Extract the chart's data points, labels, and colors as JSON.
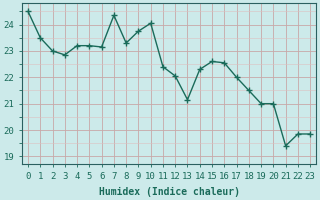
{
  "x": [
    0,
    1,
    2,
    3,
    4,
    5,
    6,
    7,
    8,
    9,
    10,
    11,
    12,
    13,
    14,
    15,
    16,
    17,
    18,
    19,
    20,
    21,
    22,
    23
  ],
  "y": [
    24.5,
    23.5,
    23.0,
    22.85,
    23.2,
    23.2,
    23.15,
    24.35,
    23.3,
    23.75,
    24.05,
    22.4,
    22.05,
    21.15,
    22.3,
    22.6,
    22.55,
    22.0,
    21.5,
    21.0,
    21.0,
    19.4,
    19.85,
    19.85
  ],
  "line_color": "#1a6b5a",
  "marker": "+",
  "marker_size": 5,
  "line_width": 1.0,
  "bg_color": "#cceaea",
  "grid_major_color": "#c8a8a8",
  "grid_minor_color": "#ddc0c0",
  "ylabel_ticks": [
    19,
    20,
    21,
    22,
    23,
    24
  ],
  "ylim": [
    18.7,
    24.8
  ],
  "xlim": [
    -0.5,
    23.5
  ],
  "xlabel": "Humidex (Indice chaleur)",
  "xlabel_fontsize": 7,
  "tick_fontsize": 6.5,
  "axis_color": "#1a6b5a",
  "spine_color": "#2a6060"
}
